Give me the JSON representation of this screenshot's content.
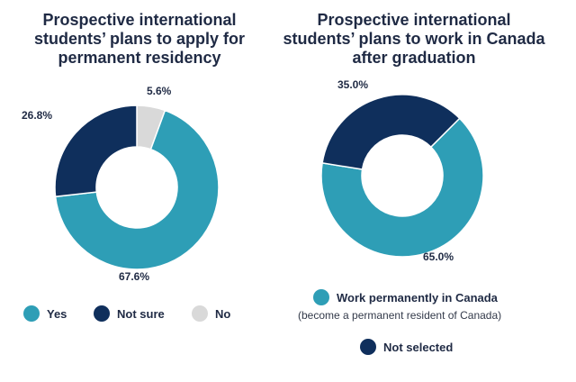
{
  "colors": {
    "yes": "#2e9eb6",
    "not_sure": "#0f2f5c",
    "no": "#d9d9d9",
    "text": "#1f2a44"
  },
  "chart_data": [
    {
      "type": "pie",
      "donut": true,
      "title_lines": [
        "Prospective international",
        "students’ plans to apply for",
        "permanent residency"
      ],
      "slices": [
        {
          "key": "yes",
          "name": "Yes",
          "value": 67.6,
          "label": "67.6%"
        },
        {
          "key": "not_sure",
          "name": "Not sure",
          "value": 26.8,
          "label": "26.8%"
        },
        {
          "key": "no",
          "name": "No",
          "value": 5.6,
          "label": "5.6%"
        }
      ],
      "legend": [
        "Yes",
        "Not sure",
        "No"
      ]
    },
    {
      "type": "pie",
      "donut": true,
      "title_lines": [
        "Prospective international",
        "students’ plans to work in Canada",
        "after graduation"
      ],
      "slices": [
        {
          "key": "yes",
          "name": "Work permanently in Canada",
          "value": 65.0,
          "label": "65.0%"
        },
        {
          "key": "not_sure",
          "name": "Not selected",
          "value": 35.0,
          "label": "35.0%"
        }
      ],
      "legend": [
        {
          "label": "Work permanently in Canada",
          "sub": "(become a permanent resident of Canada)"
        },
        {
          "label": "Not selected",
          "sub": ""
        }
      ]
    }
  ]
}
